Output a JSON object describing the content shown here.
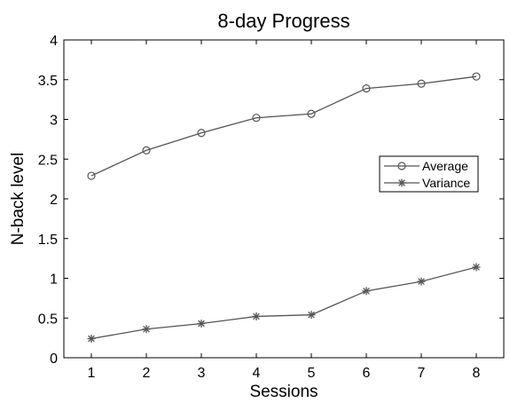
{
  "chart_data": {
    "type": "line",
    "title": "8-day Progress",
    "xlabel": "Sessions",
    "ylabel": "N-back level",
    "x": [
      1,
      2,
      3,
      4,
      5,
      6,
      7,
      8
    ],
    "xlim": [
      0.5,
      8.5
    ],
    "ylim": [
      0,
      4
    ],
    "xticks": [
      "1",
      "2",
      "3",
      "4",
      "5",
      "6",
      "7",
      "8"
    ],
    "yticks": [
      "0",
      "0.5",
      "1",
      "1.5",
      "2",
      "2.5",
      "3",
      "3.5",
      "4"
    ],
    "grid": false,
    "legend_position": "right",
    "series": [
      {
        "name": "Average",
        "marker": "circle",
        "color": "#555555",
        "values": [
          2.29,
          2.61,
          2.83,
          3.02,
          3.07,
          3.39,
          3.45,
          3.54
        ]
      },
      {
        "name": "Variance",
        "marker": "star",
        "color": "#555555",
        "values": [
          0.24,
          0.36,
          0.43,
          0.52,
          0.54,
          0.84,
          0.96,
          1.14
        ]
      }
    ]
  }
}
